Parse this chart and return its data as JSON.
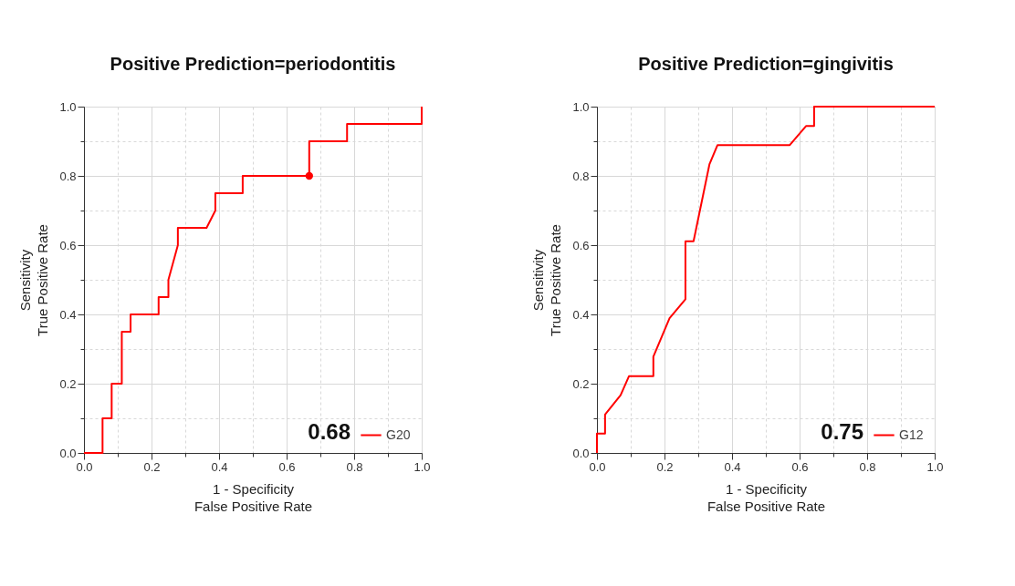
{
  "chart_data": [
    {
      "type": "line",
      "title": "Positive Prediction=periodontitis",
      "xlabel": "1 - Specificity\nFalse Positive Rate",
      "ylabel": "Sensitivity\nTrue Positive Rate",
      "xlim": [
        0,
        1
      ],
      "ylim": [
        0,
        1
      ],
      "xticks": [
        {
          "value": 0,
          "label": "0.0"
        },
        {
          "value": 0.1,
          "label": null
        },
        {
          "value": 0.2,
          "label": "0.2"
        },
        {
          "value": 0.3,
          "label": null
        },
        {
          "value": 0.4,
          "label": "0.4"
        },
        {
          "value": 0.5,
          "label": null
        },
        {
          "value": 0.6,
          "label": "0.6"
        },
        {
          "value": 0.7,
          "label": null
        },
        {
          "value": 0.8,
          "label": "0.8"
        },
        {
          "value": 0.9,
          "label": null
        },
        {
          "value": 1,
          "label": "1.0"
        }
      ],
      "yticks": [
        {
          "value": 0,
          "label": "0.0"
        },
        {
          "value": 0.1,
          "label": null
        },
        {
          "value": 0.2,
          "label": "0.2"
        },
        {
          "value": 0.3,
          "label": null
        },
        {
          "value": 0.4,
          "label": "0.4"
        },
        {
          "value": 0.5,
          "label": null
        },
        {
          "value": 0.6,
          "label": "0.6"
        },
        {
          "value": 0.7,
          "label": null
        },
        {
          "value": 0.8,
          "label": "0.8"
        },
        {
          "value": 0.9,
          "label": null
        },
        {
          "value": 1,
          "label": "1.0"
        }
      ],
      "grid": true,
      "legend": "bottom right",
      "annotations": [
        "0.68"
      ],
      "series": [
        {
          "name": "G20",
          "type": "line",
          "color": "#ff0000",
          "x": [
            0,
            0.055,
            0.055,
            0.082,
            0.082,
            0.112,
            0.112,
            0.138,
            0.138,
            0.221,
            0.221,
            0.25,
            0.25,
            0.278,
            0.278,
            0.363,
            0.389,
            0.389,
            0.47,
            0.47,
            0.667,
            0.667,
            0.779,
            0.779,
            1,
            1
          ],
          "values": [
            0,
            0,
            0.1,
            0.1,
            0.2,
            0.2,
            0.35,
            0.35,
            0.4,
            0.4,
            0.45,
            0.45,
            0.5,
            0.6,
            0.65,
            0.65,
            0.7,
            0.75,
            0.75,
            0.8,
            0.8,
            0.9,
            0.9,
            0.95,
            0.95,
            1
          ]
        },
        {
          "type": "scatter",
          "color": "#ff0000",
          "x": [
            0.667
          ],
          "values": [
            0.8
          ]
        }
      ]
    },
    {
      "type": "line",
      "title": "Positive Prediction=gingivitis",
      "xlabel": "1 - Specificity\nFalse Positive Rate",
      "ylabel": "Sensitivity\nTrue Positive Rate",
      "xlim": [
        0,
        1
      ],
      "ylim": [
        0,
        1
      ],
      "xticks": [
        {
          "value": 0,
          "label": "0.0"
        },
        {
          "value": 0.1,
          "label": null
        },
        {
          "value": 0.2,
          "label": "0.2"
        },
        {
          "value": 0.3,
          "label": null
        },
        {
          "value": 0.4,
          "label": "0.4"
        },
        {
          "value": 0.5,
          "label": null
        },
        {
          "value": 0.6,
          "label": "0.6"
        },
        {
          "value": 0.7,
          "label": null
        },
        {
          "value": 0.8,
          "label": "0.8"
        },
        {
          "value": 0.9,
          "label": null
        },
        {
          "value": 1,
          "label": "1.0"
        }
      ],
      "yticks": [
        {
          "value": 0,
          "label": "0.0"
        },
        {
          "value": 0.1,
          "label": null
        },
        {
          "value": 0.2,
          "label": "0.2"
        },
        {
          "value": 0.3,
          "label": null
        },
        {
          "value": 0.4,
          "label": "0.4"
        },
        {
          "value": 0.5,
          "label": null
        },
        {
          "value": 0.6,
          "label": "0.6"
        },
        {
          "value": 0.7,
          "label": null
        },
        {
          "value": 0.8,
          "label": "0.8"
        },
        {
          "value": 0.9,
          "label": null
        },
        {
          "value": 1,
          "label": "1.0"
        }
      ],
      "grid": true,
      "legend": "bottom right",
      "annotations": [
        "0.75"
      ],
      "series": [
        {
          "name": "G12",
          "type": "line",
          "color": "#ff0000",
          "x": [
            0,
            0,
            0.024,
            0.024,
            0.07,
            0.095,
            0.167,
            0.167,
            0.215,
            0.262,
            0.262,
            0.286,
            0.333,
            0.357,
            0.571,
            0.619,
            0.643,
            0.643,
            1
          ],
          "values": [
            0,
            0.056,
            0.056,
            0.111,
            0.167,
            0.222,
            0.222,
            0.278,
            0.389,
            0.444,
            0.611,
            0.611,
            0.833,
            0.889,
            0.889,
            0.944,
            0.944,
            1,
            1
          ]
        }
      ]
    }
  ]
}
